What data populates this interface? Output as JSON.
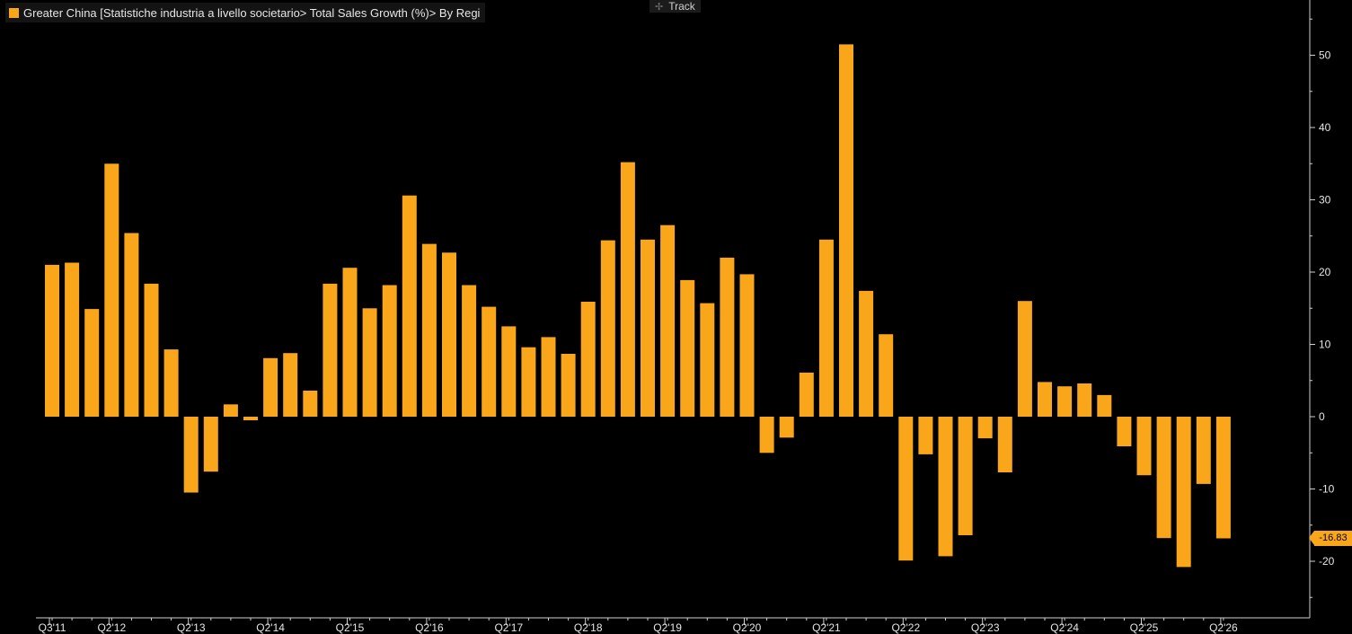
{
  "legend": {
    "label": "Greater China [Statistiche industria a livello societario> Total Sales Growth (%)> By Regi",
    "color": "#f9a61a"
  },
  "toolbar": {
    "track_label": "Track",
    "track_icon": "crosshair-icon"
  },
  "last_value": {
    "label": "-16.83",
    "value": -16.83
  },
  "colors": {
    "bar": "#f9a61a",
    "background": "#000000",
    "axis": "#d0d0d0",
    "text": "#e6e6e6"
  },
  "chart_data": {
    "type": "bar",
    "title": "",
    "xlabel": "",
    "ylabel": "",
    "ylim": [
      -28,
      55
    ],
    "yticks": [
      -20,
      -10,
      0,
      10,
      20,
      30,
      40,
      50
    ],
    "grid": false,
    "legend_position": "top-left",
    "y_axis_side": "right",
    "x_tick_labels": [
      {
        "index": 0,
        "label": "Q3'11"
      },
      {
        "index": 3,
        "label": "Q2'12"
      },
      {
        "index": 7,
        "label": "Q2'13"
      },
      {
        "index": 11,
        "label": "Q2'14"
      },
      {
        "index": 15,
        "label": "Q2'15"
      },
      {
        "index": 19,
        "label": "Q2'16"
      },
      {
        "index": 23,
        "label": "Q2'17"
      },
      {
        "index": 27,
        "label": "Q2'18"
      },
      {
        "index": 31,
        "label": "Q2'19"
      },
      {
        "index": 35,
        "label": "Q2'20"
      },
      {
        "index": 39,
        "label": "Q2'21"
      },
      {
        "index": 43,
        "label": "Q2'22"
      },
      {
        "index": 47,
        "label": "Q2'23"
      },
      {
        "index": 51,
        "label": "Q2'24"
      },
      {
        "index": 55,
        "label": "Q2'25"
      },
      {
        "index": 59,
        "label": "Q2'26"
      }
    ],
    "series": [
      {
        "values": [
          21.0,
          21.3,
          14.9,
          35.0,
          25.4,
          18.4,
          9.3,
          -10.5,
          -7.6,
          1.7,
          -0.5,
          8.1,
          8.8,
          3.6,
          18.4,
          20.6,
          15.0,
          18.2,
          30.6,
          23.9,
          22.7,
          18.2,
          15.2,
          12.5,
          9.6,
          11.0,
          8.7,
          15.9,
          24.4,
          35.2,
          24.5,
          26.5,
          18.9,
          15.7,
          22.0,
          19.7,
          -5.0,
          -2.9,
          6.1,
          24.5,
          51.5,
          17.4,
          11.4,
          -19.9,
          -5.2,
          -19.3,
          -16.4,
          -3.0,
          -7.7,
          16.0,
          4.8,
          4.2,
          4.6,
          3.0,
          -4.1,
          -8.1,
          -16.8,
          -20.8,
          -9.3,
          -16.83
        ]
      }
    ]
  }
}
